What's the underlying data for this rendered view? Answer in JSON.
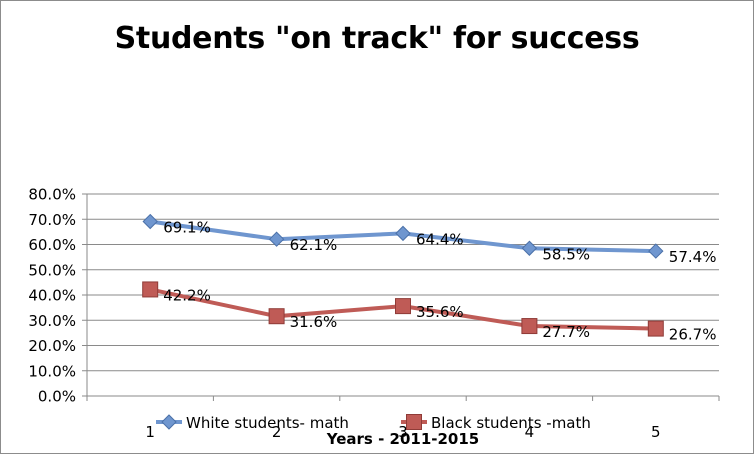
{
  "chart_data": {
    "type": "line",
    "title": "Students \"on track\" for success",
    "xlabel": "Years - 2011-2015",
    "ylabel": "",
    "categories": [
      "1",
      "2",
      "3",
      "4",
      "5"
    ],
    "ylim": [
      0,
      80
    ],
    "y_ticks": [
      "0.0%",
      "10.0%",
      "20.0%",
      "30.0%",
      "40.0%",
      "50.0%",
      "60.0%",
      "70.0%",
      "80.0%"
    ],
    "grid": true,
    "legend_position": "bottom",
    "series": [
      {
        "name": "White students- math",
        "values": [
          69.1,
          62.1,
          64.4,
          58.5,
          57.4
        ],
        "labels": [
          "69.1%",
          "62.1%",
          "64.4%",
          "58.5%",
          "57.4%"
        ],
        "color": "#6f96cf",
        "marker": "diamond"
      },
      {
        "name": "Black students -math",
        "values": [
          42.2,
          31.6,
          35.6,
          27.7,
          26.7
        ],
        "labels": [
          "42.2%",
          "31.6%",
          "35.6%",
          "27.7%",
          "26.7%"
        ],
        "color": "#bf5b56",
        "marker": "square"
      }
    ]
  }
}
